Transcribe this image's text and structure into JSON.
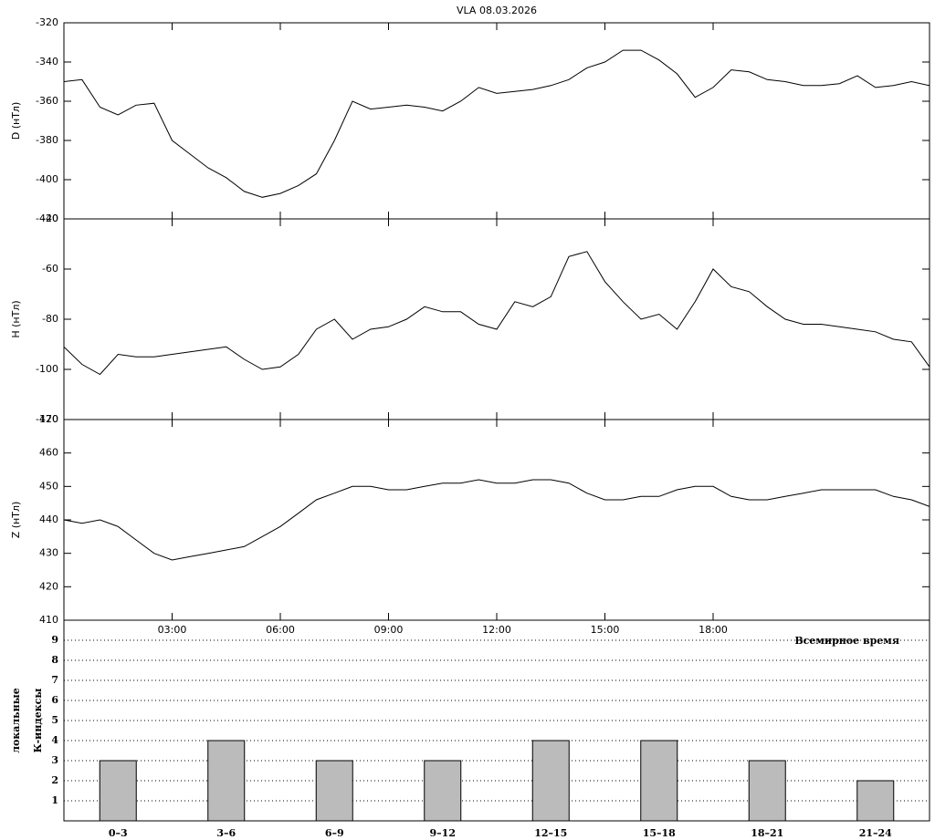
{
  "chart_data": [
    {
      "type": "line",
      "title": "VLA   08.03.2026",
      "ylabel": "D (нТл)",
      "color": "#000000",
      "x": [
        0,
        0.5,
        1,
        1.5,
        2,
        2.5,
        3,
        3.5,
        4,
        4.5,
        5,
        5.5,
        6,
        6.5,
        7,
        7.5,
        8,
        8.5,
        9,
        9.5,
        10,
        10.5,
        11,
        11.5,
        12,
        12.5,
        13,
        13.5,
        14,
        14.5,
        15,
        15.5,
        16,
        16.5,
        17,
        17.5,
        18,
        18.5,
        19,
        19.5,
        20,
        20.5,
        21,
        21.5,
        22,
        22.5,
        23,
        23.5,
        24
      ],
      "values": [
        -350,
        -349,
        -363,
        -367,
        -362,
        -361,
        -380,
        -387,
        -394,
        -399,
        -406,
        -409,
        -407,
        -403,
        -397,
        -380,
        -360,
        -364,
        -363,
        -362,
        -363,
        -365,
        -360,
        -353,
        -356,
        -355,
        -354,
        -352,
        -349,
        -343,
        -340,
        -334,
        -334,
        -339,
        -346,
        -358,
        -353,
        -344,
        -345,
        -349,
        -350,
        -352,
        -352,
        -351,
        -347,
        -353,
        -352,
        -350,
        -352
      ],
      "xlim": [
        0,
        24
      ],
      "ylim": [
        -420,
        -320
      ],
      "yticks": [
        -320,
        -340,
        -360,
        -380,
        -400,
        -420
      ]
    },
    {
      "type": "line",
      "ylabel": "H (нТл)",
      "color": "#000000",
      "x": [
        0,
        0.5,
        1,
        1.5,
        2,
        2.5,
        3,
        3.5,
        4,
        4.5,
        5,
        5.5,
        6,
        6.5,
        7,
        7.5,
        8,
        8.5,
        9,
        9.5,
        10,
        10.5,
        11,
        11.5,
        12,
        12.5,
        13,
        13.5,
        14,
        14.5,
        15,
        15.5,
        16,
        16.5,
        17,
        17.5,
        18,
        18.5,
        19,
        19.5,
        20,
        20.5,
        21,
        21.5,
        22,
        22.5,
        23,
        23.5,
        24
      ],
      "values": [
        -91,
        -98,
        -102,
        -94,
        -95,
        -95,
        -94,
        -93,
        -92,
        -91,
        -96,
        -100,
        -99,
        -94,
        -84,
        -80,
        -88,
        -84,
        -83,
        -80,
        -75,
        -77,
        -77,
        -82,
        -84,
        -73,
        -75,
        -71,
        -55,
        -53,
        -65,
        -73,
        -80,
        -78,
        -84,
        -73,
        -60,
        -67,
        -69,
        -75,
        -80,
        -82,
        -82,
        -83,
        -84,
        -85,
        -88,
        -89,
        -99
      ],
      "xlim": [
        0,
        24
      ],
      "ylim": [
        -120,
        -40
      ],
      "yticks": [
        -40,
        -60,
        -80,
        -100,
        -120
      ]
    },
    {
      "type": "line",
      "ylabel": "Z (нТл)",
      "xlabel": "Всемирное время",
      "color": "#000000",
      "x": [
        0,
        0.5,
        1,
        1.5,
        2,
        2.5,
        3,
        3.5,
        4,
        4.5,
        5,
        5.5,
        6,
        6.5,
        7,
        7.5,
        8,
        8.5,
        9,
        9.5,
        10,
        10.5,
        11,
        11.5,
        12,
        12.5,
        13,
        13.5,
        14,
        14.5,
        15,
        15.5,
        16,
        16.5,
        17,
        17.5,
        18,
        18.5,
        19,
        19.5,
        20,
        20.5,
        21,
        21.5,
        22,
        22.5,
        23,
        23.5,
        24
      ],
      "values": [
        440,
        439,
        440,
        438,
        434,
        430,
        428,
        429,
        430,
        431,
        432,
        435,
        438,
        442,
        446,
        448,
        450,
        450,
        449,
        449,
        450,
        451,
        451,
        452,
        451,
        451,
        452,
        452,
        451,
        448,
        446,
        446,
        447,
        447,
        449,
        450,
        450,
        447,
        446,
        446,
        447,
        448,
        449,
        449,
        449,
        449,
        447,
        446,
        444
      ],
      "xlim": [
        0,
        24
      ],
      "ylim": [
        410,
        470
      ],
      "yticks": [
        410,
        420,
        430,
        440,
        450,
        460,
        470
      ],
      "xticks": [
        {
          "value": 3,
          "label": "03:00"
        },
        {
          "value": 6,
          "label": "06:00"
        },
        {
          "value": 9,
          "label": "09:00"
        },
        {
          "value": 12,
          "label": "12:00"
        },
        {
          "value": 15,
          "label": "15:00"
        },
        {
          "value": 18,
          "label": "18:00"
        }
      ]
    },
    {
      "type": "bar",
      "ylabel": [
        "локальные",
        "К-индексы"
      ],
      "color": "#bbbbbb",
      "grid": true,
      "categories": [
        "0–3",
        "3–6",
        "6–9",
        "9–12",
        "12–15",
        "15–18",
        "18–21",
        "21–24"
      ],
      "values": [
        3,
        4,
        3,
        3,
        4,
        4,
        3,
        2
      ],
      "ylim": [
        0,
        10
      ],
      "yticks": [
        1,
        2,
        3,
        4,
        5,
        6,
        7,
        8,
        9
      ]
    }
  ]
}
